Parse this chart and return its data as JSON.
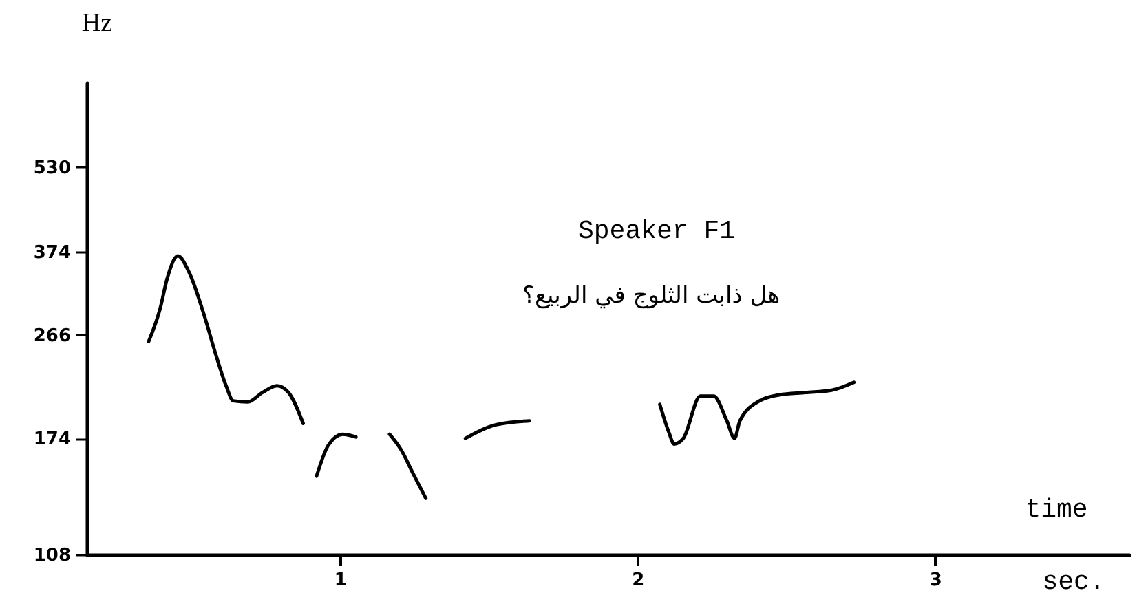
{
  "chart_data": {
    "type": "line",
    "xlabel": "time",
    "ylabel": "Hz",
    "annotations": [
      "Speaker F1",
      "هل ذابت الثلوج في الربيع؟",
      "sec."
    ],
    "xlim": [
      0.15,
      3.65
    ],
    "xticks": [
      1,
      2,
      3
    ],
    "ylim": [
      108,
      750
    ],
    "log": true,
    "yticks": [
      108,
      174,
      266,
      374,
      530
    ],
    "grid": false,
    "legend": false,
    "line_style": "solid",
    "marker": "none",
    "series": [
      {
        "color": "#000000",
        "x": [
          0.358,
          0.397,
          0.42,
          0.456,
          0.495,
          0.544,
          0.583,
          0.618,
          0.642,
          0.691,
          0.74,
          0.789,
          0.828,
          0.877
        ],
        "values": [
          259,
          297,
          335,
          368,
          343,
          289,
          246,
          216,
          203,
          202,
          210,
          216,
          210,
          185
        ]
      },
      {
        "color": "#000000",
        "x": [
          0.922,
          0.961,
          1.01,
          1.054
        ],
        "values": [
          149,
          169,
          177,
          175
        ]
      },
      {
        "color": "#000000",
        "x": [
          1.167,
          1.206,
          1.245,
          1.289
        ],
        "values": [
          177,
          166,
          151,
          136
        ]
      },
      {
        "color": "#000000",
        "x": [
          1.422,
          1.525,
          1.637
        ],
        "values": [
          174,
          184,
          187
        ]
      },
      {
        "color": "#000000",
        "x": [
          2.075,
          2.106,
          2.123,
          2.154,
          2.211,
          2.256,
          2.3,
          2.326,
          2.344,
          2.41,
          2.476,
          2.564,
          2.652,
          2.727
        ],
        "values": [
          200,
          178,
          170,
          174,
          207,
          207,
          187,
          174,
          187,
          203,
          208,
          210,
          212,
          219
        ]
      }
    ]
  }
}
